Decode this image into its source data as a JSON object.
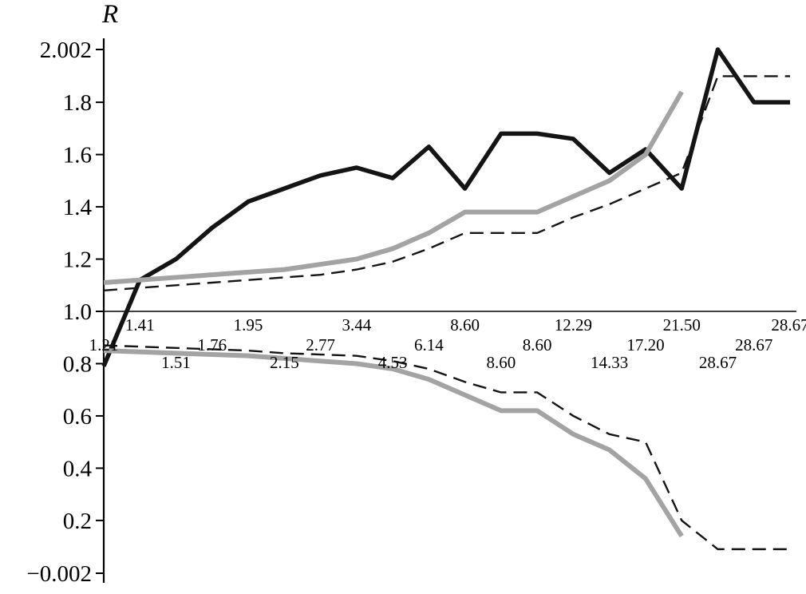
{
  "chart_data": {
    "type": "line",
    "title": "",
    "ylabel": "R",
    "xlabel": "",
    "ylim": [
      -0.002,
      2.002
    ],
    "x_axis_position": 1.0,
    "grid": false,
    "legend": "none",
    "colors": {
      "black_line": "#141414",
      "gray_line": "#a3a3a3"
    },
    "y_ticks": [
      {
        "value": 2.002,
        "label": "2.002"
      },
      {
        "value": 1.8,
        "label": "1.8"
      },
      {
        "value": 1.6,
        "label": "1.6"
      },
      {
        "value": 1.4,
        "label": "1.4"
      },
      {
        "value": 1.2,
        "label": "1.2"
      },
      {
        "value": 1.0,
        "label": "1.0"
      },
      {
        "value": 0.8,
        "label": "0.8"
      },
      {
        "value": 0.6,
        "label": "0.6"
      },
      {
        "value": 0.4,
        "label": "0.4"
      },
      {
        "value": 0.2,
        "label": "0.2"
      },
      {
        "value": -0.002,
        "label": "−0.002"
      }
    ],
    "x_ticks": [
      {
        "label": "1.21",
        "row": 2
      },
      {
        "label": "1.41",
        "row": 1
      },
      {
        "label": "1.51",
        "row": 3
      },
      {
        "label": "1.76",
        "row": 2
      },
      {
        "label": "1.95",
        "row": 1
      },
      {
        "label": "2.15",
        "row": 3
      },
      {
        "label": "2.77",
        "row": 2
      },
      {
        "label": "3.44",
        "row": 1
      },
      {
        "label": "4.53",
        "row": 3
      },
      {
        "label": "6.14",
        "row": 2
      },
      {
        "label": "8.60",
        "row": 1
      },
      {
        "label": "8.60",
        "row": 3
      },
      {
        "label": "8.60",
        "row": 2
      },
      {
        "label": "12.29",
        "row": 1
      },
      {
        "label": "14.33",
        "row": 3
      },
      {
        "label": "17.20",
        "row": 2
      },
      {
        "label": "21.50",
        "row": 1
      },
      {
        "label": "28.67",
        "row": 3
      },
      {
        "label": "28.67",
        "row": 2
      },
      {
        "label": "28.67",
        "row": 1
      }
    ],
    "series": [
      {
        "name": "thick-solid-black",
        "color": "#141414",
        "width": 5.5,
        "dash": "",
        "values": [
          0.79,
          1.12,
          1.2,
          1.32,
          1.42,
          1.47,
          1.52,
          1.55,
          1.51,
          1.63,
          1.47,
          1.68,
          1.68,
          1.66,
          1.53,
          1.62,
          1.47,
          2.002,
          1.8,
          1.8
        ]
      },
      {
        "name": "thick-solid-gray-upper",
        "color": "#a3a3a3",
        "width": 6,
        "dash": "",
        "values": [
          1.11,
          1.12,
          1.13,
          1.14,
          1.15,
          1.16,
          1.18,
          1.2,
          1.24,
          1.3,
          1.38,
          1.38,
          1.38,
          1.44,
          1.5,
          1.6,
          1.84,
          null,
          null,
          null
        ]
      },
      {
        "name": "thin-dashed-black-upper",
        "color": "#141414",
        "width": 2.4,
        "dash": "17 9",
        "values": [
          1.08,
          1.09,
          1.1,
          1.11,
          1.12,
          1.13,
          1.14,
          1.16,
          1.19,
          1.24,
          1.3,
          1.3,
          1.3,
          1.36,
          1.41,
          1.47,
          1.53,
          1.9,
          1.9,
          1.9
        ]
      },
      {
        "name": "thick-solid-gray-lower",
        "color": "#a3a3a3",
        "width": 6,
        "dash": "",
        "values": [
          0.85,
          0.845,
          0.84,
          0.835,
          0.83,
          0.82,
          0.81,
          0.8,
          0.78,
          0.74,
          0.68,
          0.62,
          0.62,
          0.53,
          0.47,
          0.36,
          0.14,
          null,
          null,
          null
        ]
      },
      {
        "name": "thin-dashed-black-lower",
        "color": "#141414",
        "width": 2.4,
        "dash": "17 9",
        "values": [
          0.87,
          0.865,
          0.86,
          0.855,
          0.85,
          0.84,
          0.835,
          0.83,
          0.81,
          0.78,
          0.73,
          0.69,
          0.69,
          0.6,
          0.53,
          0.5,
          0.2,
          0.09,
          0.09,
          0.09
        ]
      }
    ]
  }
}
